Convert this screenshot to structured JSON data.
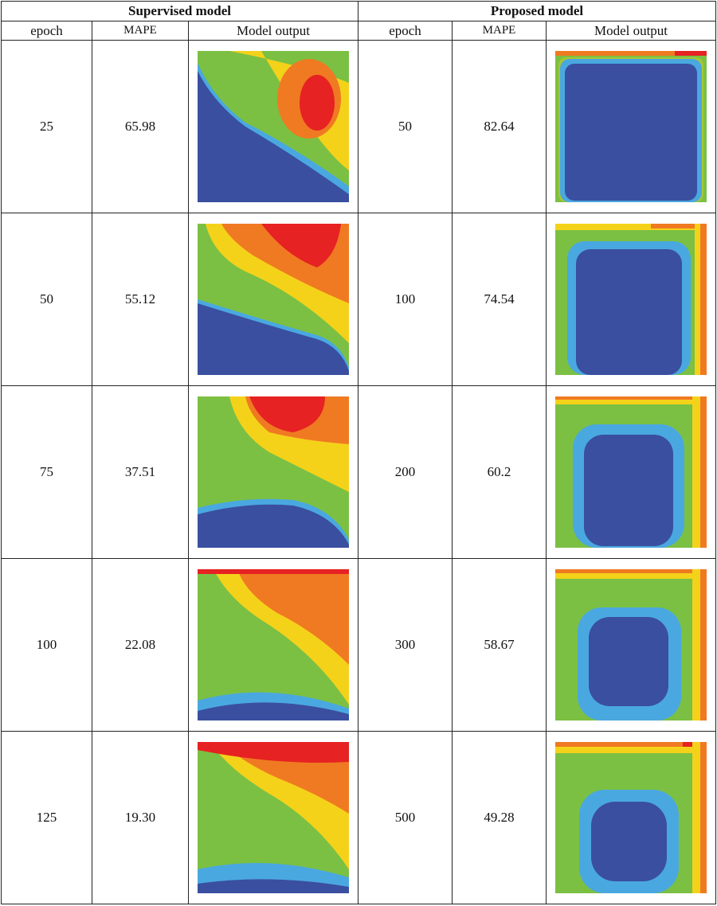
{
  "header": {
    "supervised": "Supervised model",
    "proposed": "Proposed model",
    "col_epoch": "epoch",
    "col_mape": "MAPE",
    "col_output": "Model output"
  },
  "rows": [
    {
      "sup_epoch": "25",
      "sup_mape": "65.98",
      "sup_icon": "flow-field-image",
      "prop_epoch": "50",
      "prop_mape": "82.64",
      "prop_icon": "flow-field-image"
    },
    {
      "sup_epoch": "50",
      "sup_mape": "55.12",
      "sup_icon": "flow-field-image",
      "prop_epoch": "100",
      "prop_mape": "74.54",
      "prop_icon": "flow-field-image"
    },
    {
      "sup_epoch": "75",
      "sup_mape": "37.51",
      "sup_icon": "flow-field-image",
      "prop_epoch": "200",
      "prop_mape": "60.2",
      "prop_icon": "flow-field-image"
    },
    {
      "sup_epoch": "100",
      "sup_mape": "22.08",
      "sup_icon": "flow-field-image",
      "prop_epoch": "300",
      "prop_mape": "58.67",
      "prop_icon": "flow-field-image"
    },
    {
      "sup_epoch": "125",
      "sup_mape": "19.30",
      "sup_icon": "flow-field-image",
      "prop_epoch": "500",
      "prop_mape": "49.28",
      "prop_icon": "flow-field-image"
    }
  ],
  "colors": {
    "deep_blue": "#3a4fa0",
    "light_blue": "#4aa8e0",
    "green": "#7bc043",
    "yellow": "#f5d21a",
    "orange": "#f07a22",
    "red": "#e62222"
  }
}
